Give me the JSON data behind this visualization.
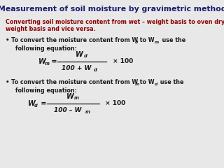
{
  "title": "Measurement of soil moisture by gravimetric method",
  "title_color": "#1a1a6e",
  "subtitle_line1": "Converting soil moisture content from wet – weight basis to oven dry-",
  "subtitle_line2": "weight basis and vice versa.",
  "subtitle_color": "#8b0000",
  "bg_color": "#e8e8e8",
  "text_color": "#1a1a1a",
  "figsize": [
    3.2,
    2.4
  ],
  "dpi": 100
}
